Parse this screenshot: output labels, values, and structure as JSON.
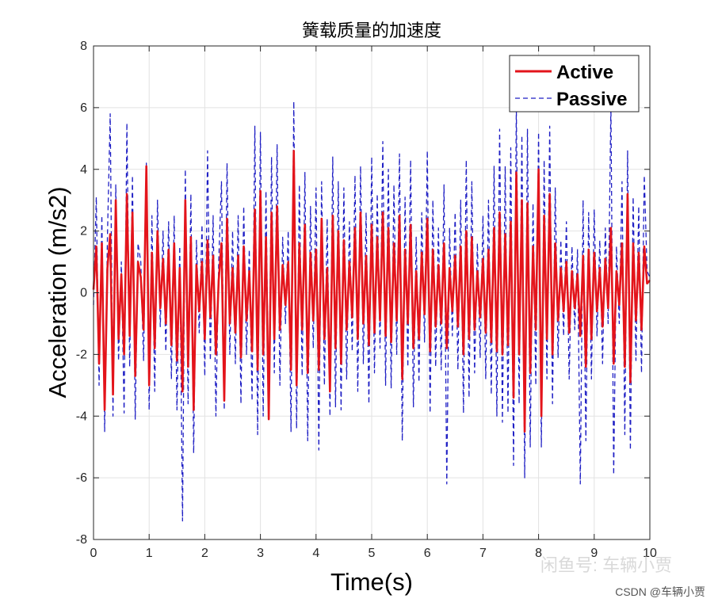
{
  "chart_data": {
    "type": "line",
    "title": "簧载质量的加速度",
    "xlabel": "Time(s)",
    "ylabel": "Acceleration (m/s2)",
    "xlim": [
      0,
      10
    ],
    "ylim": [
      -8,
      8
    ],
    "xticks": [
      0,
      1,
      2,
      3,
      4,
      5,
      6,
      7,
      8,
      9,
      10
    ],
    "yticks": [
      -8,
      -6,
      -4,
      -2,
      0,
      2,
      4,
      6,
      8
    ],
    "grid": true,
    "legend_position": "top-right",
    "series": [
      {
        "name": "Active",
        "color": "#e3141b",
        "line_style": "solid",
        "x": [
          0,
          0.05,
          0.1,
          0.15,
          0.2,
          0.25,
          0.3,
          0.35,
          0.4,
          0.45,
          0.5,
          0.55,
          0.6,
          0.65,
          0.7,
          0.75,
          0.8,
          0.85,
          0.9,
          0.95,
          1.0,
          1.05,
          1.1,
          1.15,
          1.2,
          1.25,
          1.3,
          1.35,
          1.4,
          1.45,
          1.5,
          1.55,
          1.6,
          1.65,
          1.7,
          1.75,
          1.8,
          1.85,
          1.9,
          1.95,
          2.0,
          2.05,
          2.1,
          2.15,
          2.2,
          2.25,
          2.3,
          2.35,
          2.4,
          2.45,
          2.5,
          2.55,
          2.6,
          2.65,
          2.7,
          2.75,
          2.8,
          2.85,
          2.9,
          2.95,
          3.0,
          3.05,
          3.1,
          3.15,
          3.2,
          3.25,
          3.3,
          3.35,
          3.4,
          3.45,
          3.5,
          3.55,
          3.6,
          3.65,
          3.7,
          3.75,
          3.8,
          3.85,
          3.9,
          3.95,
          4.0,
          4.05,
          4.1,
          4.15,
          4.2,
          4.25,
          4.3,
          4.35,
          4.4,
          4.45,
          4.5,
          4.55,
          4.6,
          4.65,
          4.7,
          4.75,
          4.8,
          4.85,
          4.9,
          4.95,
          5.0,
          5.05,
          5.1,
          5.15,
          5.2,
          5.25,
          5.3,
          5.35,
          5.4,
          5.45,
          5.5,
          5.55,
          5.6,
          5.65,
          5.7,
          5.75,
          5.8,
          5.85,
          5.9,
          5.95,
          6.0,
          6.05,
          6.1,
          6.15,
          6.2,
          6.25,
          6.3,
          6.35,
          6.4,
          6.45,
          6.5,
          6.55,
          6.6,
          6.65,
          6.7,
          6.75,
          6.8,
          6.85,
          6.9,
          6.95,
          7.0,
          7.05,
          7.1,
          7.15,
          7.2,
          7.25,
          7.3,
          7.35,
          7.4,
          7.45,
          7.5,
          7.55,
          7.6,
          7.65,
          7.7,
          7.75,
          7.8,
          7.85,
          7.9,
          7.95,
          8.0,
          8.05,
          8.1,
          8.15,
          8.2,
          8.25,
          8.3,
          8.35,
          8.4,
          8.45,
          8.5,
          8.55,
          8.6,
          8.65,
          8.7,
          8.75,
          8.8,
          8.85,
          8.9,
          8.95,
          9.0,
          9.05,
          9.1,
          9.15,
          9.2,
          9.25,
          9.3,
          9.35,
          9.4,
          9.45,
          9.5,
          9.55,
          9.6,
          9.65,
          9.7,
          9.75,
          9.8,
          9.85,
          9.9,
          9.95,
          10.0
        ],
        "y": [
          0.1,
          1.5,
          -2.3,
          1.6,
          -3.8,
          0.8,
          1.9,
          -3.3,
          3.0,
          -1.5,
          0.6,
          -2.0,
          3.2,
          -1.4,
          2.6,
          -2.7,
          1.0,
          0.5,
          -1.2,
          4.1,
          -3.0,
          1.3,
          -1.8,
          2.0,
          -0.5,
          1.1,
          -1.0,
          1.4,
          -1.7,
          1.6,
          -2.2,
          0.8,
          -3.2,
          3.0,
          -2.4,
          1.8,
          -3.8,
          0.9,
          -0.6,
          1.0,
          -1.5,
          1.7,
          -0.8,
          1.2,
          -2.0,
          0.4,
          1.6,
          -3.5,
          2.4,
          -1.0,
          0.8,
          -1.3,
          1.2,
          -2.1,
          1.5,
          -0.9,
          0.7,
          -1.9,
          2.7,
          -2.5,
          3.3,
          -2.0,
          1.8,
          -4.1,
          2.6,
          -1.5,
          2.8,
          -1.2,
          0.9,
          -0.4,
          1.0,
          -2.5,
          4.6,
          -3.0,
          1.6,
          -1.2,
          2.2,
          -2.6,
          1.3,
          -0.9,
          1.4,
          -2.5,
          2.4,
          -1.5,
          0.8,
          -3.2,
          2.5,
          -1.8,
          2.0,
          -2.3,
          1.7,
          -1.2,
          1.0,
          -0.8,
          2.1,
          -1.5,
          2.6,
          -1.0,
          1.2,
          -1.7,
          2.2,
          -1.3,
          1.8,
          -0.9,
          2.6,
          -1.4,
          2.1,
          -1.6,
          1.6,
          -0.9,
          2.5,
          -2.8,
          1.4,
          -1.0,
          2.2,
          -1.8,
          0.7,
          -1.5,
          1.3,
          -0.7,
          2.4,
          -1.9,
          1.4,
          -1.1,
          0.9,
          -1.0,
          1.6,
          -1.8,
          0.8,
          -0.6,
          1.2,
          -1.1,
          1.5,
          -2.0,
          2.0,
          -1.5,
          1.8,
          -1.2,
          0.7,
          -0.8,
          1.1,
          -1.3,
          1.4,
          -1.6,
          2.1,
          -1.9,
          2.6,
          -2.0,
          1.9,
          -1.7,
          2.3,
          -3.4,
          3.9,
          -2.0,
          3.0,
          -4.5,
          2.9,
          -2.6,
          1.5,
          -1.2,
          4.0,
          -4.0,
          2.5,
          -1.5,
          3.2,
          -2.0,
          1.6,
          -0.9,
          0.8,
          -0.6,
          1.0,
          -1.3,
          0.7,
          -0.5,
          0.6,
          -1.4,
          1.2,
          -2.4,
          1.4,
          -1.5,
          1.3,
          -0.6,
          0.8,
          -1.1,
          1.1,
          -0.5,
          2.1,
          -2.3,
          0.7,
          -0.4,
          1.6,
          -2.4,
          3.2,
          -2.9,
          1.6,
          -0.9,
          1.3,
          -1.2,
          1.5,
          0.3,
          0.4
        ]
      },
      {
        "name": "Passive",
        "color": "#1f1fc4",
        "line_style": "dashed",
        "x": [
          0,
          0.05,
          0.1,
          0.15,
          0.2,
          0.25,
          0.3,
          0.35,
          0.4,
          0.45,
          0.5,
          0.55,
          0.6,
          0.65,
          0.7,
          0.75,
          0.8,
          0.85,
          0.9,
          0.95,
          1.0,
          1.05,
          1.1,
          1.15,
          1.2,
          1.25,
          1.3,
          1.35,
          1.4,
          1.45,
          1.5,
          1.55,
          1.6,
          1.65,
          1.7,
          1.75,
          1.8,
          1.85,
          1.9,
          1.95,
          2.0,
          2.05,
          2.1,
          2.15,
          2.2,
          2.25,
          2.3,
          2.35,
          2.4,
          2.45,
          2.5,
          2.55,
          2.6,
          2.65,
          2.7,
          2.75,
          2.8,
          2.85,
          2.9,
          2.95,
          3.0,
          3.05,
          3.1,
          3.15,
          3.2,
          3.25,
          3.3,
          3.35,
          3.4,
          3.45,
          3.5,
          3.55,
          3.6,
          3.65,
          3.7,
          3.75,
          3.8,
          3.85,
          3.9,
          3.95,
          4.0,
          4.05,
          4.1,
          4.15,
          4.2,
          4.25,
          4.3,
          4.35,
          4.4,
          4.45,
          4.5,
          4.55,
          4.6,
          4.65,
          4.7,
          4.75,
          4.8,
          4.85,
          4.9,
          4.95,
          5.0,
          5.05,
          5.1,
          5.15,
          5.2,
          5.25,
          5.3,
          5.35,
          5.4,
          5.45,
          5.5,
          5.55,
          5.6,
          5.65,
          5.7,
          5.75,
          5.8,
          5.85,
          5.9,
          5.95,
          6.0,
          6.05,
          6.1,
          6.15,
          6.2,
          6.25,
          6.3,
          6.35,
          6.4,
          6.45,
          6.5,
          6.55,
          6.6,
          6.65,
          6.7,
          6.75,
          6.8,
          6.85,
          6.9,
          6.95,
          7.0,
          7.05,
          7.1,
          7.15,
          7.2,
          7.25,
          7.3,
          7.35,
          7.4,
          7.45,
          7.5,
          7.55,
          7.6,
          7.65,
          7.7,
          7.75,
          7.8,
          7.85,
          7.9,
          7.95,
          8.0,
          8.05,
          8.1,
          8.15,
          8.2,
          8.25,
          8.3,
          8.35,
          8.4,
          8.45,
          8.5,
          8.55,
          8.6,
          8.65,
          8.7,
          8.75,
          8.8,
          8.85,
          8.9,
          8.95,
          9.0,
          9.05,
          9.1,
          9.15,
          9.2,
          9.25,
          9.3,
          9.35,
          9.4,
          9.45,
          9.5,
          9.55,
          9.6,
          9.65,
          9.7,
          9.75,
          9.8,
          9.85,
          9.9,
          9.95,
          10.0
        ],
        "y": [
          -0.4,
          3.1,
          -3.0,
          2.5,
          -4.5,
          1.8,
          5.8,
          -4.0,
          3.5,
          -2.2,
          1.0,
          -3.9,
          5.5,
          -2.4,
          3.8,
          -4.1,
          1.6,
          1.0,
          -2.2,
          4.2,
          -3.8,
          2.5,
          -3.2,
          3.0,
          -1.1,
          2.0,
          -1.9,
          2.3,
          -2.8,
          2.5,
          -3.8,
          1.5,
          -7.4,
          4.0,
          -3.6,
          3.2,
          -5.2,
          1.7,
          -1.3,
          2.2,
          -2.7,
          4.6,
          -2.2,
          2.5,
          -4.0,
          1.0,
          3.6,
          -3.8,
          4.2,
          -2.0,
          2.0,
          -2.3,
          2.5,
          -3.6,
          2.8,
          -2.0,
          1.4,
          -3.5,
          5.4,
          -4.6,
          5.2,
          -4.0,
          3.3,
          -4.0,
          4.4,
          -2.6,
          4.8,
          -3.0,
          1.8,
          -1.0,
          2.0,
          -4.5,
          6.2,
          -4.4,
          3.5,
          -2.7,
          3.9,
          -4.8,
          2.8,
          -1.8,
          3.4,
          -5.1,
          3.6,
          -3.0,
          2.4,
          -4.0,
          4.4,
          -3.7,
          3.6,
          -3.8,
          3.4,
          -2.8,
          2.3,
          -1.9,
          3.8,
          -3.2,
          4.1,
          -2.3,
          2.6,
          -3.6,
          4.4,
          -2.6,
          3.2,
          -1.8,
          4.9,
          -3.0,
          4.0,
          -3.1,
          3.5,
          -2.0,
          4.5,
          -4.8,
          3.1,
          -2.4,
          4.3,
          -3.7,
          1.8,
          -2.9,
          2.6,
          -1.6,
          4.6,
          -3.9,
          3.0,
          -2.4,
          2.1,
          -2.5,
          3.5,
          -6.2,
          2.1,
          -1.4,
          2.6,
          -2.5,
          3.0,
          -3.9,
          4.3,
          -3.4,
          3.6,
          -2.6,
          1.6,
          -2.1,
          2.5,
          -2.8,
          3.0,
          -3.3,
          4.1,
          -4.0,
          5.3,
          -4.2,
          4.1,
          -3.9,
          4.7,
          -5.6,
          6.0,
          -3.6,
          5.1,
          -6.0,
          5.3,
          -5.0,
          2.9,
          -3.0,
          5.2,
          -5.0,
          4.3,
          -2.8,
          5.4,
          -3.6,
          3.4,
          -2.1,
          1.7,
          -1.4,
          2.3,
          -2.8,
          1.5,
          -1.2,
          1.4,
          -6.2,
          3.0,
          -4.8,
          2.6,
          -2.8,
          2.7,
          -1.4,
          1.7,
          -2.3,
          2.1,
          -1.0,
          6.1,
          -5.9,
          1.5,
          -1.0,
          3.6,
          -4.6,
          4.6,
          -5.1,
          3.1,
          -2.2,
          2.8,
          -2.6,
          3.8,
          0.7,
          0.5
        ]
      }
    ]
  },
  "watermarks": {
    "platform": "闲鱼号: 车辆小贾",
    "source": "CSDN @车辆小贾"
  }
}
